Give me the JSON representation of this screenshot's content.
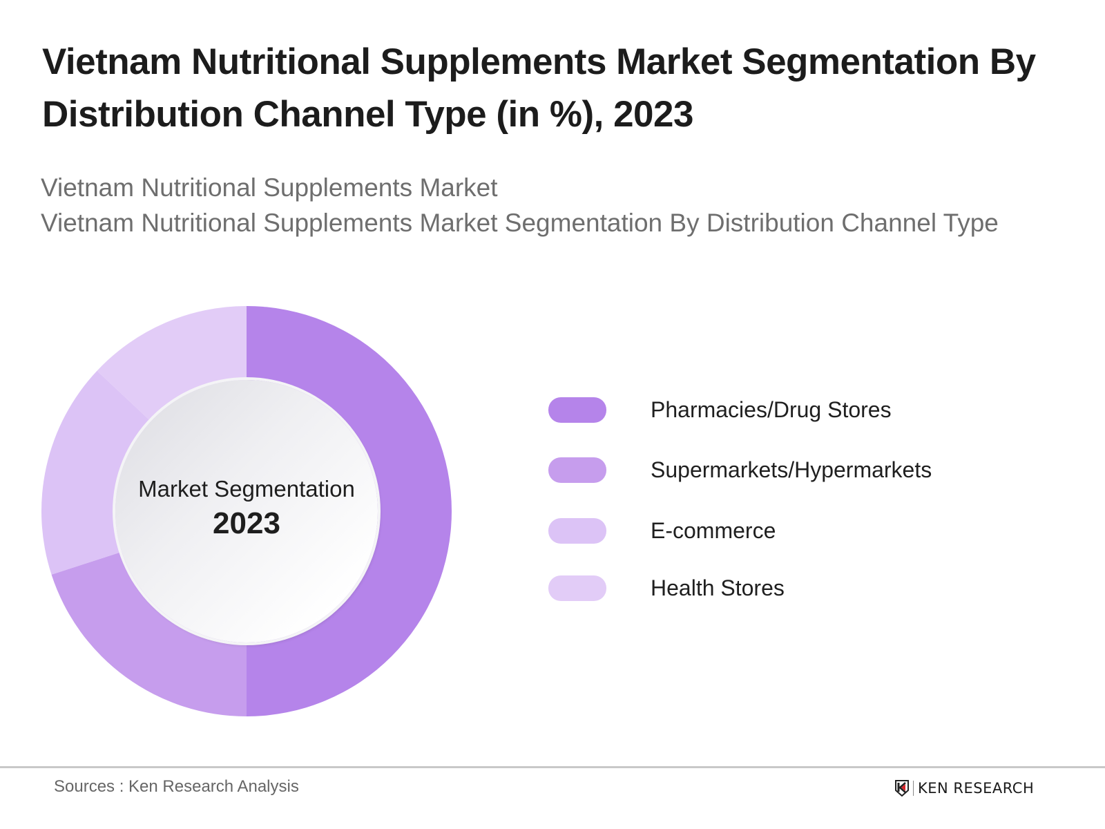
{
  "header": {
    "title_line1": "Vietnam Nutritional Supplements Market Segmentation By",
    "title_line2": "Distribution Channel Type (in %), 2023",
    "subtitle_line1": "Vietnam Nutritional Supplements Market",
    "subtitle_line2": "Vietnam Nutritional Supplements Market Segmentation By Distribution Channel Type"
  },
  "donut_center": {
    "label": "Market Segmentation",
    "year": "2023"
  },
  "legend": [
    {
      "label": "Pharmacies/Drug Stores",
      "color": "#B584EA"
    },
    {
      "label": "Supermarkets/Hypermarkets",
      "color": "#C69DED"
    },
    {
      "label": "E-commerce",
      "color": "#DCC3F6"
    },
    {
      "label": "Health Stores",
      "color": "#E2CCF7"
    }
  ],
  "footer": {
    "source": "Sources : Ken Research Analysis",
    "logo_text": "KEN RESEARCH"
  },
  "chart_data": {
    "type": "pie",
    "variant": "donut",
    "title": "Vietnam Nutritional Supplements Market Segmentation By Distribution Channel Type (in %), 2023",
    "subtitle": "Vietnam Nutritional Supplements Market Segmentation By Distribution Channel Type",
    "center_text": "Market Segmentation 2023",
    "categories": [
      "Pharmacies/Drug Stores",
      "Supermarkets/Hypermarkets",
      "E-commerce",
      "Health Stores"
    ],
    "values": [
      50,
      20,
      17,
      13
    ],
    "unit": "%",
    "colors": [
      "#B584EA",
      "#C69DED",
      "#DCC3F6",
      "#E2CCF7"
    ],
    "start_angle_deg": 0,
    "direction": "clockwise",
    "legend_position": "right",
    "data_labels_shown": false
  }
}
